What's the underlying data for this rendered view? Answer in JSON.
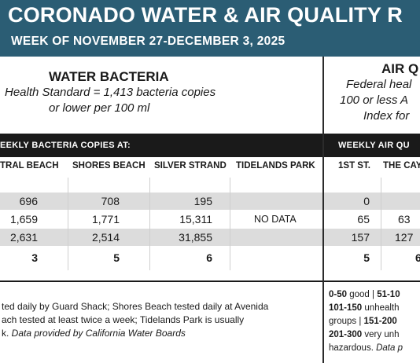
{
  "header": {
    "title": "CORONADO WATER & AIR QUALITY R",
    "subtitle": "WEEK OF NOVEMBER 27-DECEMBER 3, 2025"
  },
  "water": {
    "heading": "WATER BACTERIA",
    "standard_line1": "Health Standard  = 1,413 bacteria copies",
    "standard_line2": "or lower per 100 ml",
    "band_label": "EEKLY BACTERIA COPIES AT:",
    "columns": [
      "TRAL BEACH",
      "SHORES BEACH",
      "SILVER STRAND",
      "TIDELANDS PARK"
    ],
    "rows": [
      [
        "696",
        "708",
        "195",
        ""
      ],
      [
        "1,659",
        "1,771",
        "15,311",
        "NO DATA"
      ],
      [
        "2,631",
        "2,514",
        "31,855",
        ""
      ],
      [
        "3",
        "5",
        "6",
        ""
      ]
    ],
    "notes": {
      "line1": "ted daily by Guard Shack; Shores Beach tested daily at Avenida",
      "line2": "ach tested at least twice a week; Tidelands Park is usually",
      "line3_plain": "k. ",
      "line3_italic": "Data provided by California Water Boards"
    }
  },
  "air": {
    "heading": "AIR Q",
    "sub_line1": "Federal heal",
    "sub_line2": "100 or less A",
    "sub_line3": "Index for",
    "band_label": "WEEKLY AIR QU",
    "columns": [
      "1ST ST.",
      "THE CAY"
    ],
    "rows": [
      [
        "0",
        ""
      ],
      [
        "65",
        "63"
      ],
      [
        "157",
        "127"
      ],
      [
        "5",
        "6"
      ]
    ],
    "legend": {
      "line1_a": "0-50",
      "line1_b": " good | ",
      "line1_c": "51-10",
      "line2_a": "101-150",
      "line2_b": " unhealth",
      "line3_a": "groups | ",
      "line3_b": "151-200",
      "line4_a": "201-300",
      "line4_b": " very unh",
      "line5_a": "hazardous. ",
      "line5_b": "Data p"
    }
  }
}
